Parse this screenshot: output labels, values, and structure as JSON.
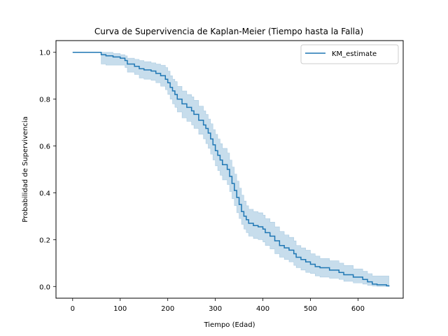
{
  "chart_data": {
    "type": "line",
    "title": "Curva de Supervivencia de Kaplan-Meier (Tiempo hasta la Falla)",
    "xlabel": "Tiempo (Edad)",
    "ylabel": "Probabilidad de Supervivencia",
    "xlim": [
      -35,
      695
    ],
    "ylim": [
      -0.05,
      1.05
    ],
    "xticks": [
      0,
      100,
      200,
      300,
      400,
      500,
      600
    ],
    "yticks": [
      0.0,
      0.2,
      0.4,
      0.6,
      0.8,
      1.0
    ],
    "grid": false,
    "legend_position": "top-right",
    "series": [
      {
        "name": "KM_estimate",
        "color": "#1f77b4",
        "band_color": "#1f77b4",
        "step": "post",
        "points": [
          [
            0,
            1.0
          ],
          [
            60,
            0.99
          ],
          [
            70,
            0.985
          ],
          [
            85,
            0.98
          ],
          [
            100,
            0.975
          ],
          [
            110,
            0.965
          ],
          [
            115,
            0.95
          ],
          [
            130,
            0.94
          ],
          [
            140,
            0.93
          ],
          [
            150,
            0.925
          ],
          [
            165,
            0.92
          ],
          [
            175,
            0.91
          ],
          [
            185,
            0.9
          ],
          [
            195,
            0.885
          ],
          [
            200,
            0.87
          ],
          [
            205,
            0.85
          ],
          [
            210,
            0.835
          ],
          [
            215,
            0.82
          ],
          [
            220,
            0.8
          ],
          [
            230,
            0.78
          ],
          [
            240,
            0.765
          ],
          [
            250,
            0.75
          ],
          [
            255,
            0.735
          ],
          [
            265,
            0.71
          ],
          [
            275,
            0.69
          ],
          [
            280,
            0.675
          ],
          [
            285,
            0.655
          ],
          [
            290,
            0.63
          ],
          [
            295,
            0.605
          ],
          [
            300,
            0.58
          ],
          [
            305,
            0.56
          ],
          [
            310,
            0.54
          ],
          [
            315,
            0.52
          ],
          [
            325,
            0.5
          ],
          [
            330,
            0.47
          ],
          [
            335,
            0.44
          ],
          [
            340,
            0.41
          ],
          [
            345,
            0.38
          ],
          [
            350,
            0.35
          ],
          [
            355,
            0.32
          ],
          [
            360,
            0.3
          ],
          [
            365,
            0.285
          ],
          [
            370,
            0.27
          ],
          [
            380,
            0.26
          ],
          [
            390,
            0.255
          ],
          [
            400,
            0.245
          ],
          [
            405,
            0.23
          ],
          [
            415,
            0.215
          ],
          [
            425,
            0.195
          ],
          [
            435,
            0.175
          ],
          [
            445,
            0.165
          ],
          [
            455,
            0.155
          ],
          [
            465,
            0.14
          ],
          [
            470,
            0.125
          ],
          [
            480,
            0.115
          ],
          [
            490,
            0.105
          ],
          [
            500,
            0.095
          ],
          [
            510,
            0.085
          ],
          [
            520,
            0.08
          ],
          [
            540,
            0.07
          ],
          [
            560,
            0.06
          ],
          [
            570,
            0.05
          ],
          [
            590,
            0.04
          ],
          [
            610,
            0.03
          ],
          [
            620,
            0.02
          ],
          [
            630,
            0.01
          ],
          [
            640,
            0.007
          ],
          [
            660,
            0.003
          ],
          [
            665,
            0.0
          ]
        ],
        "upper": [
          [
            0,
            1.0
          ],
          [
            60,
            1.0
          ],
          [
            85,
            0.995
          ],
          [
            100,
            0.99
          ],
          [
            110,
            0.985
          ],
          [
            115,
            0.975
          ],
          [
            130,
            0.97
          ],
          [
            140,
            0.965
          ],
          [
            150,
            0.96
          ],
          [
            165,
            0.955
          ],
          [
            175,
            0.95
          ],
          [
            185,
            0.945
          ],
          [
            195,
            0.935
          ],
          [
            200,
            0.92
          ],
          [
            205,
            0.9
          ],
          [
            210,
            0.885
          ],
          [
            215,
            0.875
          ],
          [
            220,
            0.855
          ],
          [
            230,
            0.835
          ],
          [
            240,
            0.82
          ],
          [
            250,
            0.81
          ],
          [
            255,
            0.795
          ],
          [
            265,
            0.77
          ],
          [
            275,
            0.75
          ],
          [
            280,
            0.735
          ],
          [
            285,
            0.715
          ],
          [
            290,
            0.695
          ],
          [
            295,
            0.67
          ],
          [
            300,
            0.65
          ],
          [
            305,
            0.63
          ],
          [
            310,
            0.61
          ],
          [
            315,
            0.59
          ],
          [
            325,
            0.57
          ],
          [
            330,
            0.54
          ],
          [
            335,
            0.51
          ],
          [
            340,
            0.48
          ],
          [
            345,
            0.45
          ],
          [
            350,
            0.42
          ],
          [
            355,
            0.39
          ],
          [
            360,
            0.365
          ],
          [
            365,
            0.345
          ],
          [
            370,
            0.33
          ],
          [
            380,
            0.32
          ],
          [
            390,
            0.315
          ],
          [
            400,
            0.305
          ],
          [
            405,
            0.29
          ],
          [
            415,
            0.275
          ],
          [
            425,
            0.255
          ],
          [
            435,
            0.235
          ],
          [
            445,
            0.22
          ],
          [
            455,
            0.21
          ],
          [
            465,
            0.195
          ],
          [
            470,
            0.175
          ],
          [
            480,
            0.165
          ],
          [
            490,
            0.155
          ],
          [
            500,
            0.14
          ],
          [
            510,
            0.13
          ],
          [
            520,
            0.12
          ],
          [
            540,
            0.11
          ],
          [
            560,
            0.1
          ],
          [
            570,
            0.09
          ],
          [
            590,
            0.075
          ],
          [
            610,
            0.065
          ],
          [
            620,
            0.055
          ],
          [
            630,
            0.045
          ],
          [
            640,
            0.045
          ],
          [
            660,
            0.045
          ],
          [
            665,
            0.045
          ]
        ],
        "lower": [
          [
            0,
            1.0
          ],
          [
            60,
            0.95
          ],
          [
            70,
            0.945
          ],
          [
            85,
            0.945
          ],
          [
            100,
            0.945
          ],
          [
            110,
            0.935
          ],
          [
            115,
            0.915
          ],
          [
            130,
            0.905
          ],
          [
            140,
            0.89
          ],
          [
            150,
            0.885
          ],
          [
            165,
            0.88
          ],
          [
            175,
            0.87
          ],
          [
            185,
            0.855
          ],
          [
            195,
            0.84
          ],
          [
            200,
            0.82
          ],
          [
            205,
            0.8
          ],
          [
            210,
            0.78
          ],
          [
            215,
            0.765
          ],
          [
            220,
            0.745
          ],
          [
            230,
            0.72
          ],
          [
            240,
            0.705
          ],
          [
            250,
            0.69
          ],
          [
            255,
            0.675
          ],
          [
            265,
            0.65
          ],
          [
            275,
            0.63
          ],
          [
            280,
            0.61
          ],
          [
            285,
            0.59
          ],
          [
            290,
            0.565
          ],
          [
            295,
            0.54
          ],
          [
            300,
            0.515
          ],
          [
            305,
            0.495
          ],
          [
            310,
            0.475
          ],
          [
            315,
            0.455
          ],
          [
            325,
            0.435
          ],
          [
            330,
            0.405
          ],
          [
            335,
            0.375
          ],
          [
            340,
            0.345
          ],
          [
            345,
            0.315
          ],
          [
            350,
            0.29
          ],
          [
            355,
            0.265
          ],
          [
            360,
            0.245
          ],
          [
            365,
            0.23
          ],
          [
            370,
            0.215
          ],
          [
            380,
            0.205
          ],
          [
            390,
            0.2
          ],
          [
            400,
            0.19
          ],
          [
            405,
            0.175
          ],
          [
            415,
            0.16
          ],
          [
            425,
            0.14
          ],
          [
            435,
            0.125
          ],
          [
            445,
            0.115
          ],
          [
            455,
            0.105
          ],
          [
            465,
            0.09
          ],
          [
            470,
            0.08
          ],
          [
            480,
            0.07
          ],
          [
            490,
            0.06
          ],
          [
            500,
            0.055
          ],
          [
            510,
            0.045
          ],
          [
            520,
            0.04
          ],
          [
            540,
            0.035
          ],
          [
            560,
            0.03
          ],
          [
            570,
            0.022
          ],
          [
            590,
            0.015
          ],
          [
            610,
            0.01
          ],
          [
            620,
            0.005
          ],
          [
            630,
            0.002
          ],
          [
            640,
            0.0
          ],
          [
            660,
            0.0
          ],
          [
            665,
            0.0
          ]
        ]
      }
    ]
  }
}
